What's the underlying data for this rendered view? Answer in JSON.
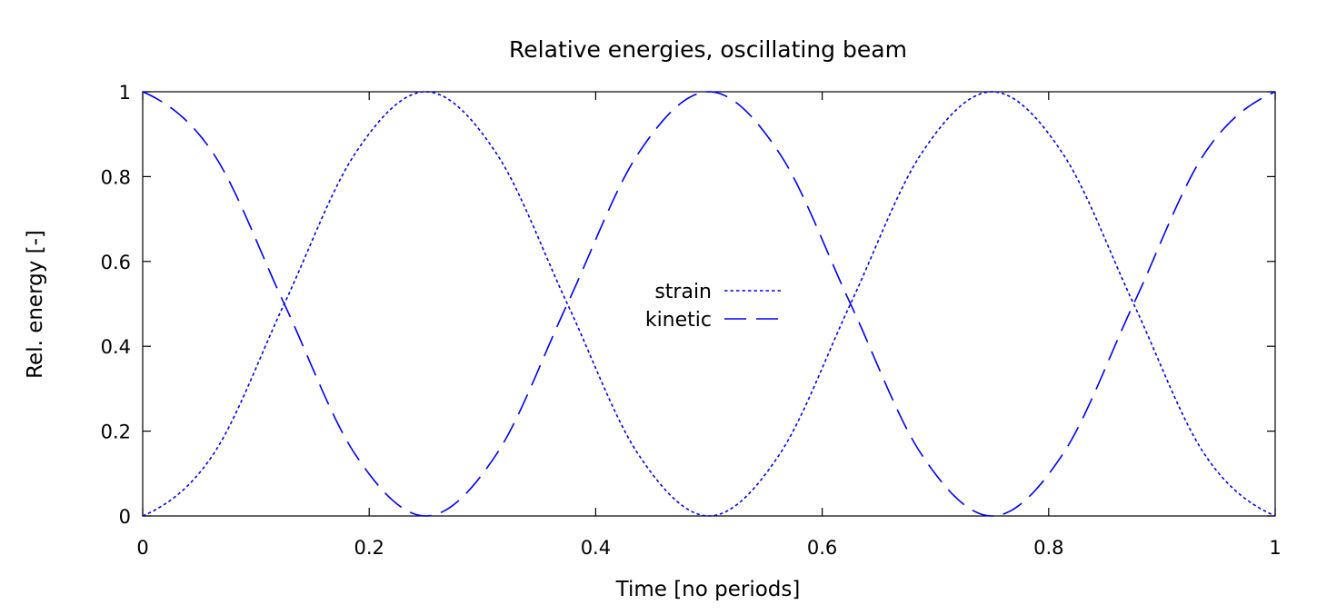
{
  "chart_data": {
    "type": "line",
    "title": "Relative energies, oscillating beam",
    "xlabel": "Time [no periods]",
    "ylabel": "Rel. energy [-]",
    "xlim": [
      0,
      1
    ],
    "ylim": [
      0,
      1
    ],
    "xticks": [
      "0",
      "0.2",
      "0.4",
      "0.6",
      "0.8",
      "1"
    ],
    "yticks": [
      "0",
      "0.2",
      "0.4",
      "0.6",
      "0.8",
      "1"
    ],
    "xtick_values": [
      0,
      0.2,
      0.4,
      0.6,
      0.8,
      1
    ],
    "ytick_values": [
      0,
      0.2,
      0.4,
      0.6,
      0.8,
      1
    ],
    "grid": false,
    "legend_position": "center",
    "x": [
      0,
      0.0625,
      0.125,
      0.1875,
      0.25,
      0.3125,
      0.375,
      0.4375,
      0.5,
      0.5625,
      0.625,
      0.6875,
      0.75,
      0.8125,
      0.875,
      0.9375,
      1
    ],
    "series": [
      {
        "name": "strain",
        "color": "#0000ff",
        "dash": "dotted",
        "values": [
          0,
          0.146,
          0.5,
          0.854,
          1,
          0.854,
          0.5,
          0.146,
          0,
          0.146,
          0.5,
          0.854,
          1,
          0.854,
          0.5,
          0.146,
          0
        ]
      },
      {
        "name": "kinetic",
        "color": "#0000ff",
        "dash": "long-dash",
        "values": [
          1,
          0.854,
          0.5,
          0.146,
          0,
          0.146,
          0.5,
          0.854,
          1,
          0.854,
          0.5,
          0.146,
          0,
          0.146,
          0.5,
          0.854,
          1
        ]
      }
    ]
  }
}
